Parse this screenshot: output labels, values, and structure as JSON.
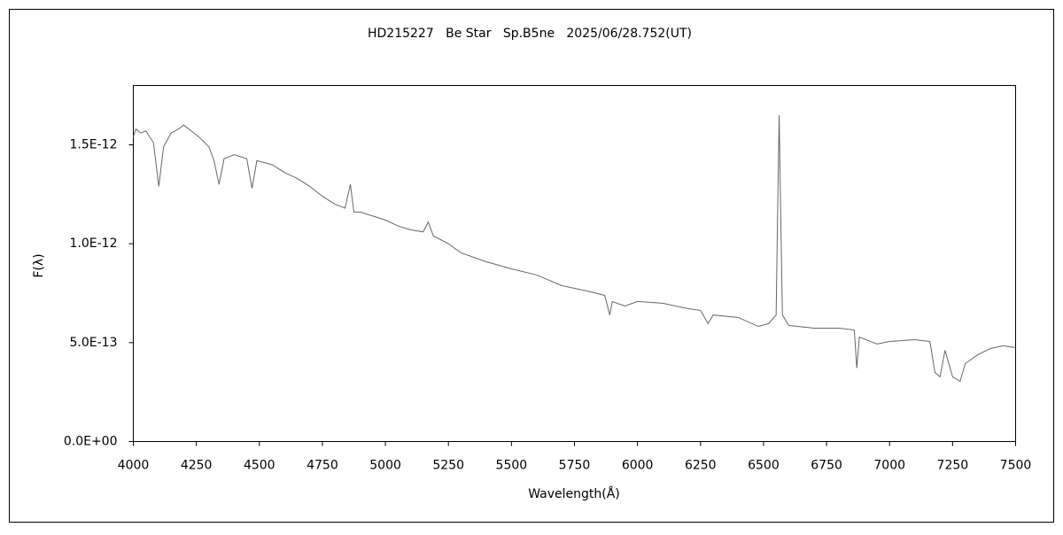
{
  "chart_data": {
    "type": "line",
    "title": "HD215227   Be Star   Sp.B5ne   2025/06/28.752(UT)",
    "x_label": "Wavelength(Å)",
    "y_label": "F(λ)",
    "xlim": [
      4000,
      7500
    ],
    "xticks": [
      4000,
      4250,
      4500,
      4750,
      5000,
      5250,
      5500,
      5750,
      6000,
      6250,
      6500,
      6750,
      7000,
      7250,
      7500
    ],
    "ylim": [
      0,
      1.8e-12
    ],
    "yticks": [
      {
        "value": 0,
        "label": "0.0E+00"
      },
      {
        "value": 5e-13,
        "label": "5.0E-13"
      },
      {
        "value": 1e-12,
        "label": "1.0E-12"
      },
      {
        "value": 1.5e-12,
        "label": "1.5E-12"
      }
    ],
    "grid": false,
    "series": [
      {
        "color": "#666666",
        "x": [
          4000,
          4010,
          4030,
          4050,
          4080,
          4101,
          4120,
          4150,
          4180,
          4200,
          4230,
          4260,
          4300,
          4320,
          4340,
          4360,
          4400,
          4450,
          4471,
          4490,
          4550,
          4600,
          4650,
          4700,
          4750,
          4800,
          4840,
          4861,
          4875,
          4900,
          4950,
          5000,
          5050,
          5100,
          5150,
          5170,
          5190,
          5250,
          5300,
          5400,
          5500,
          5600,
          5700,
          5800,
          5870,
          5890,
          5900,
          5950,
          6000,
          6100,
          6200,
          6250,
          6280,
          6300,
          6400,
          6480,
          6520,
          6550,
          6556,
          6562,
          6568,
          6575,
          6600,
          6700,
          6800,
          6860,
          6870,
          6880,
          6950,
          7000,
          7100,
          7160,
          7180,
          7200,
          7220,
          7250,
          7280,
          7300,
          7350,
          7400,
          7450,
          7500
        ],
        "values": [
          1.54e-12,
          1.58e-12,
          1.56e-12,
          1.57e-12,
          1.51e-12,
          1.29e-12,
          1.49e-12,
          1.56e-12,
          1.58e-12,
          1.6e-12,
          1.57e-12,
          1.54e-12,
          1.49e-12,
          1.42e-12,
          1.3e-12,
          1.43e-12,
          1.45e-12,
          1.43e-12,
          1.28e-12,
          1.42e-12,
          1.4e-12,
          1.36e-12,
          1.33e-12,
          1.29e-12,
          1.24e-12,
          1.2e-12,
          1.18e-12,
          1.3e-12,
          1.16e-12,
          1.16e-12,
          1.14e-12,
          1.12e-12,
          1.09e-12,
          1.07e-12,
          1.06e-12,
          1.11e-12,
          1.04e-12,
          1e-12,
          9.54e-13,
          9.09e-13,
          8.73e-13,
          8.42e-13,
          7.88e-13,
          7.61e-13,
          7.39e-13,
          6.4e-13,
          7.08e-13,
          6.85e-13,
          7.08e-13,
          6.99e-13,
          6.72e-13,
          6.63e-13,
          5.96e-13,
          6.4e-13,
          6.27e-13,
          5.82e-13,
          5.96e-13,
          6.4e-13,
          1.16e-12,
          1.65e-12,
          1.16e-12,
          6.4e-13,
          5.87e-13,
          5.73e-13,
          5.73e-13,
          5.64e-13,
          3.72e-13,
          5.28e-13,
          4.93e-13,
          5.06e-13,
          5.15e-13,
          5.06e-13,
          3.49e-13,
          3.27e-13,
          4.61e-13,
          3.27e-13,
          3.05e-13,
          3.94e-13,
          4.39e-13,
          4.7e-13,
          4.84e-13,
          4.75e-13
        ]
      }
    ]
  }
}
